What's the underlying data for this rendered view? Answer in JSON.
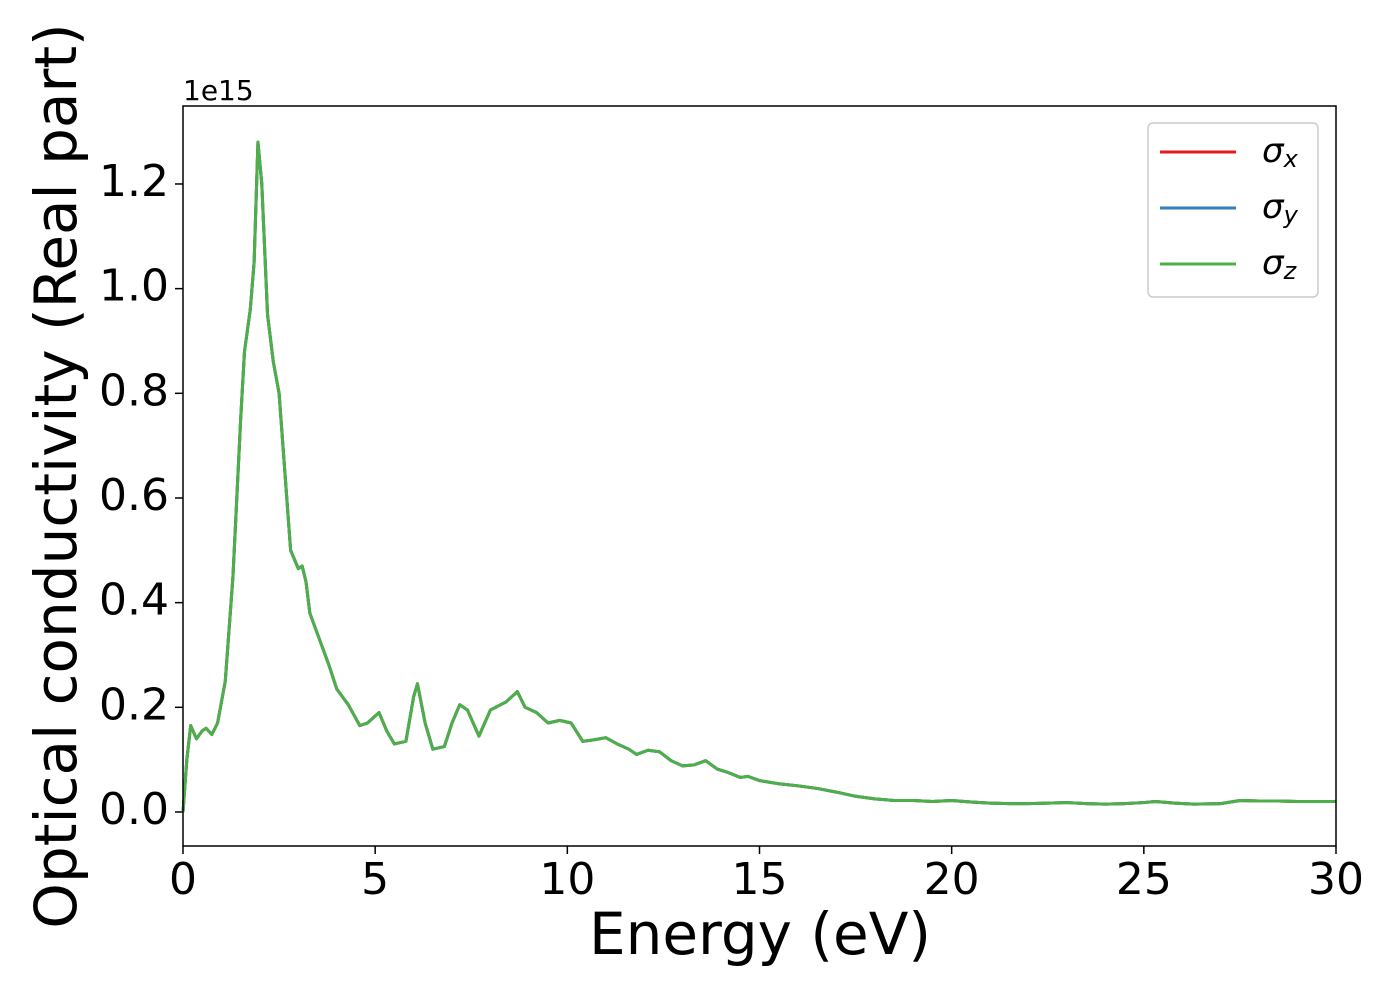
{
  "chart_data": {
    "type": "line",
    "x_label": "Energy (eV)",
    "y_label": "Optical conductivity (Real part)",
    "y_offset_label": "1e15",
    "x": [
      0,
      0.1,
      0.2,
      0.35,
      0.5,
      0.6,
      0.75,
      0.9,
      1.1,
      1.3,
      1.5,
      1.6,
      1.75,
      1.85,
      1.95,
      2.05,
      2.2,
      2.35,
      2.5,
      2.65,
      2.8,
      3.0,
      3.1,
      3.2,
      3.3,
      3.6,
      3.8,
      4.0,
      4.3,
      4.6,
      4.8,
      5.1,
      5.3,
      5.5,
      5.8,
      6.0,
      6.1,
      6.3,
      6.5,
      6.8,
      7.0,
      7.2,
      7.4,
      7.7,
      8.0,
      8.4,
      8.7,
      8.9,
      9.2,
      9.5,
      9.8,
      10.1,
      10.4,
      10.7,
      11.0,
      11.3,
      11.6,
      11.8,
      12.1,
      12.4,
      12.7,
      13.0,
      13.3,
      13.6,
      13.9,
      14.2,
      14.5,
      14.7,
      15.0,
      15.5,
      16.0,
      16.5,
      17.0,
      17.5,
      18.0,
      18.5,
      19.0,
      19.5,
      20.0,
      20.5,
      21.0,
      21.5,
      22.0,
      22.5,
      23.0,
      23.5,
      24.0,
      24.5,
      25.0,
      25.3,
      25.8,
      26.3,
      27.0,
      27.5,
      28.0,
      28.5,
      29.0,
      30.0
    ],
    "series": [
      {
        "name": "σx",
        "color": "#e41a1c",
        "values": [
          0.0,
          0.1,
          0.165,
          0.14,
          0.155,
          0.16,
          0.148,
          0.17,
          0.25,
          0.45,
          0.75,
          0.88,
          0.96,
          1.05,
          1.28,
          1.2,
          0.95,
          0.86,
          0.8,
          0.65,
          0.5,
          0.465,
          0.47,
          0.44,
          0.38,
          0.32,
          0.28,
          0.235,
          0.205,
          0.165,
          0.17,
          0.19,
          0.155,
          0.13,
          0.135,
          0.22,
          0.245,
          0.17,
          0.12,
          0.125,
          0.17,
          0.205,
          0.195,
          0.145,
          0.195,
          0.21,
          0.23,
          0.2,
          0.19,
          0.17,
          0.175,
          0.17,
          0.135,
          0.138,
          0.142,
          0.13,
          0.12,
          0.11,
          0.118,
          0.115,
          0.098,
          0.088,
          0.09,
          0.098,
          0.082,
          0.075,
          0.066,
          0.068,
          0.06,
          0.054,
          0.05,
          0.045,
          0.038,
          0.03,
          0.025,
          0.022,
          0.022,
          0.02,
          0.022,
          0.019,
          0.017,
          0.016,
          0.016,
          0.017,
          0.018,
          0.016,
          0.015,
          0.016,
          0.018,
          0.02,
          0.017,
          0.015,
          0.016,
          0.022,
          0.021,
          0.021,
          0.02,
          0.02
        ]
      },
      {
        "name": "σy",
        "color": "#377eb8",
        "values": [
          0.0,
          0.1,
          0.165,
          0.14,
          0.155,
          0.16,
          0.148,
          0.17,
          0.25,
          0.45,
          0.75,
          0.88,
          0.96,
          1.05,
          1.28,
          1.2,
          0.95,
          0.86,
          0.8,
          0.65,
          0.5,
          0.465,
          0.47,
          0.44,
          0.38,
          0.32,
          0.28,
          0.235,
          0.205,
          0.165,
          0.17,
          0.19,
          0.155,
          0.13,
          0.135,
          0.22,
          0.245,
          0.17,
          0.12,
          0.125,
          0.17,
          0.205,
          0.195,
          0.145,
          0.195,
          0.21,
          0.23,
          0.2,
          0.19,
          0.17,
          0.175,
          0.17,
          0.135,
          0.138,
          0.142,
          0.13,
          0.12,
          0.11,
          0.118,
          0.115,
          0.098,
          0.088,
          0.09,
          0.098,
          0.082,
          0.075,
          0.066,
          0.068,
          0.06,
          0.054,
          0.05,
          0.045,
          0.038,
          0.03,
          0.025,
          0.022,
          0.022,
          0.02,
          0.022,
          0.019,
          0.017,
          0.016,
          0.016,
          0.017,
          0.018,
          0.016,
          0.015,
          0.016,
          0.018,
          0.02,
          0.017,
          0.015,
          0.016,
          0.022,
          0.021,
          0.021,
          0.02,
          0.02
        ]
      },
      {
        "name": "σz",
        "color": "#4daf4a",
        "values": [
          0.0,
          0.1,
          0.165,
          0.14,
          0.155,
          0.16,
          0.148,
          0.17,
          0.25,
          0.45,
          0.75,
          0.88,
          0.96,
          1.05,
          1.28,
          1.2,
          0.95,
          0.86,
          0.8,
          0.65,
          0.5,
          0.465,
          0.47,
          0.44,
          0.38,
          0.32,
          0.28,
          0.235,
          0.205,
          0.165,
          0.17,
          0.19,
          0.155,
          0.13,
          0.135,
          0.22,
          0.245,
          0.17,
          0.12,
          0.125,
          0.17,
          0.205,
          0.195,
          0.145,
          0.195,
          0.21,
          0.23,
          0.2,
          0.19,
          0.17,
          0.175,
          0.17,
          0.135,
          0.138,
          0.142,
          0.13,
          0.12,
          0.11,
          0.118,
          0.115,
          0.098,
          0.088,
          0.09,
          0.098,
          0.082,
          0.075,
          0.066,
          0.068,
          0.06,
          0.054,
          0.05,
          0.045,
          0.038,
          0.03,
          0.025,
          0.022,
          0.022,
          0.02,
          0.022,
          0.019,
          0.017,
          0.016,
          0.016,
          0.017,
          0.018,
          0.016,
          0.015,
          0.016,
          0.018,
          0.02,
          0.017,
          0.015,
          0.016,
          0.022,
          0.021,
          0.021,
          0.02,
          0.02
        ]
      }
    ],
    "xlim": [
      0,
      30
    ],
    "xticks": [
      0,
      5,
      10,
      15,
      20,
      25,
      30
    ],
    "ylim": [
      -0.065,
      1.349
    ],
    "yticks": [
      {
        "value": 0,
        "label": "0.0"
      },
      {
        "value": 0.2,
        "label": "0.2"
      },
      {
        "value": 0.4,
        "label": "0.4"
      },
      {
        "value": 0.6,
        "label": "0.6"
      },
      {
        "value": 0.8,
        "label": "0.8"
      },
      {
        "value": 1,
        "label": "1.0"
      },
      {
        "value": 1.2,
        "label": "1.2"
      }
    ],
    "legend": "upper right",
    "grid": false
  }
}
